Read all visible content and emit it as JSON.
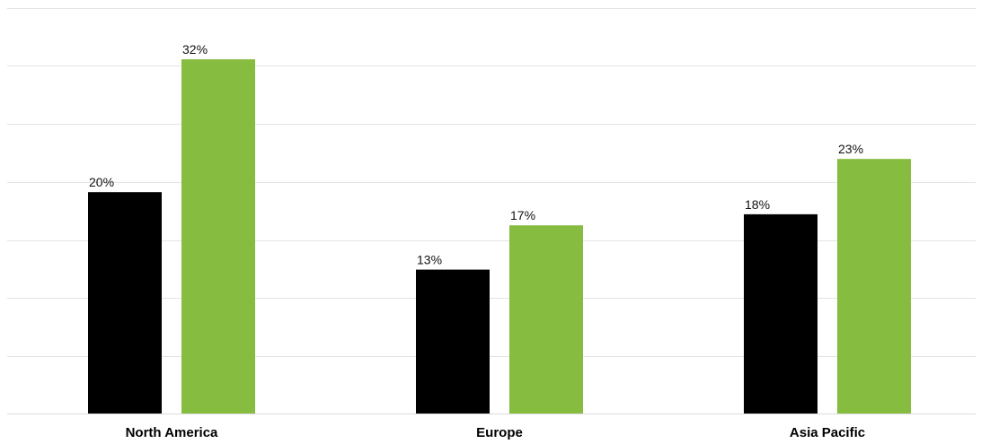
{
  "chart_data": {
    "type": "bar",
    "categories": [
      "North America",
      "Europe",
      "Asia Pacific"
    ],
    "series": [
      {
        "values": [
          20,
          13,
          18
        ],
        "labels": [
          "20%",
          "13%",
          "18%"
        ],
        "color": "#000000"
      },
      {
        "values": [
          32,
          17,
          23
        ],
        "labels": [
          "32%",
          "17%",
          "23%"
        ],
        "color": "#86bc40"
      }
    ],
    "ylim": [
      0,
      35
    ],
    "grid": true,
    "legend": "none"
  }
}
